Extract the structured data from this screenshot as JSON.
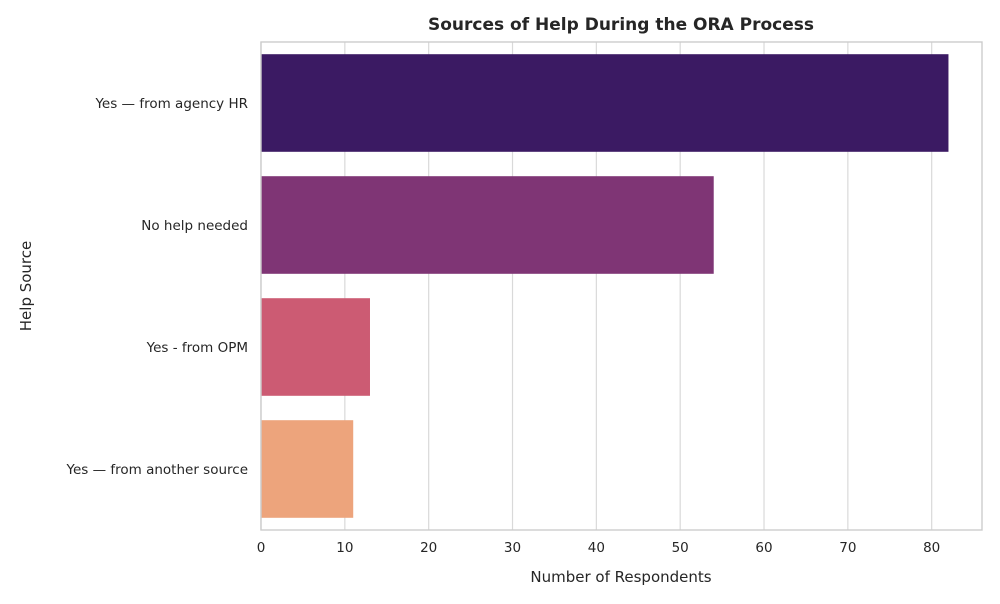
{
  "chart_data": {
    "type": "bar",
    "orientation": "horizontal",
    "title": "Sources of Help During the ORA Process",
    "xlabel": "Number of Respondents",
    "ylabel": "Help Source",
    "categories": [
      "Yes — from agency HR",
      "No help needed",
      "Yes - from OPM",
      "Yes — from another source"
    ],
    "values": [
      82,
      54,
      13,
      11
    ],
    "colors": [
      "#3b1a63",
      "#7f3575",
      "#cc5b73",
      "#eda47c"
    ],
    "xlim": [
      0,
      86
    ],
    "xticks": [
      0,
      10,
      20,
      30,
      40,
      50,
      60,
      70,
      80
    ],
    "grid": true,
    "legend": "none"
  }
}
